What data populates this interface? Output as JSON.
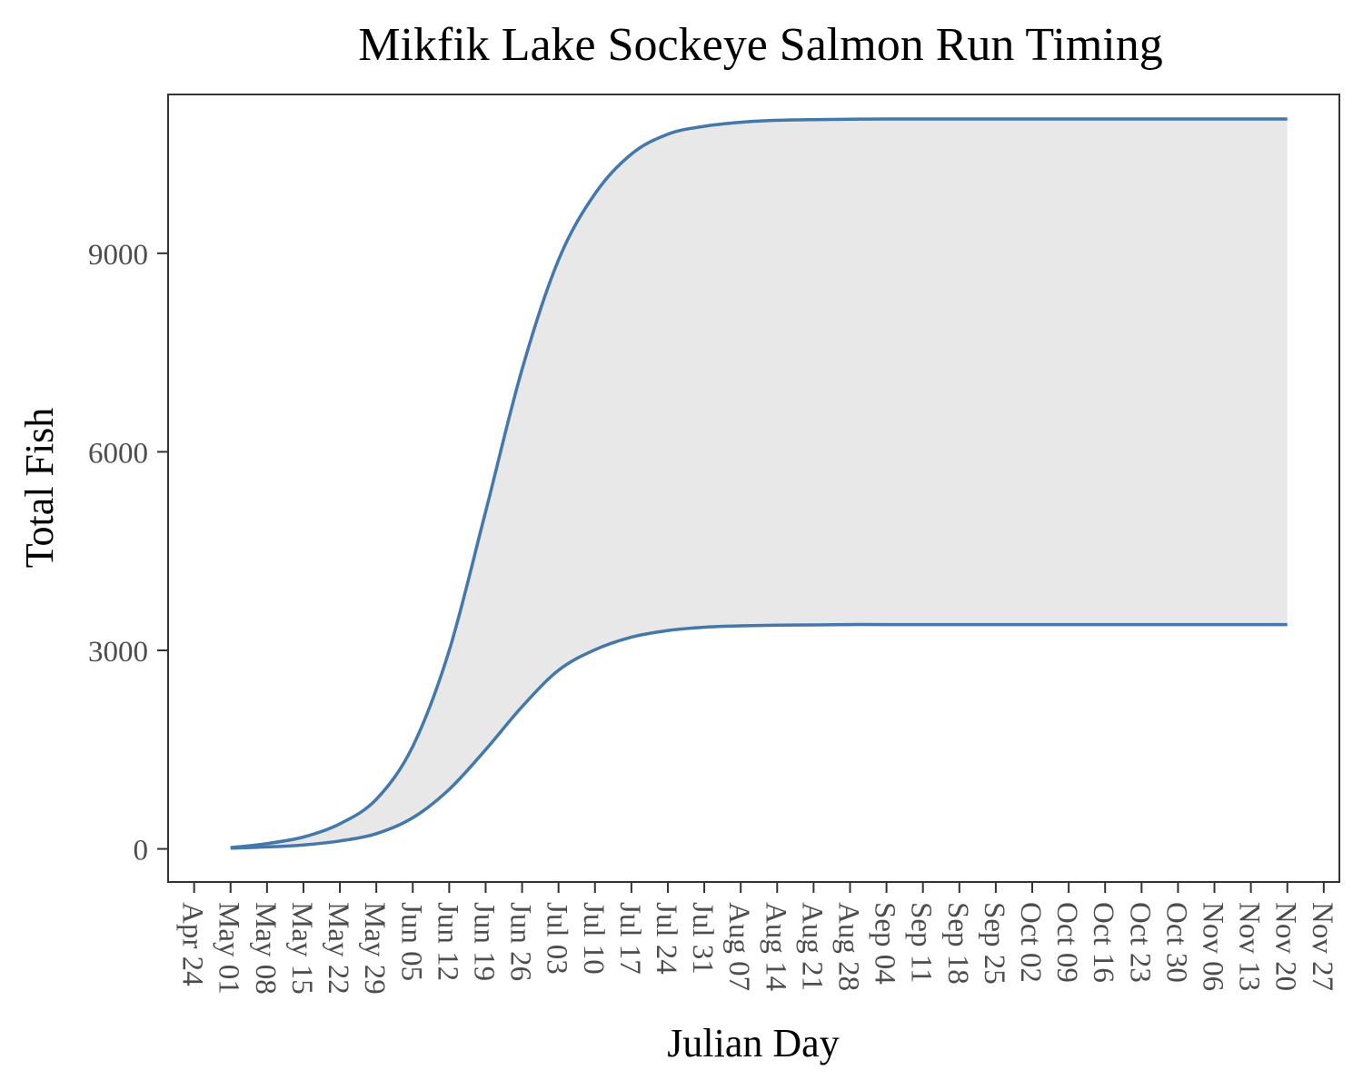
{
  "chart_data": {
    "type": "area",
    "title": "Mikfik Lake Sockeye Salmon Run Timing",
    "xlabel": "Julian Day",
    "ylabel": "Total Fish",
    "x_tick_labels": [
      "Apr 24",
      "May 01",
      "May 08",
      "May 15",
      "May 22",
      "May 29",
      "Jun 05",
      "Jun 12",
      "Jun 19",
      "Jun 26",
      "Jul 03",
      "Jul 10",
      "Jul 17",
      "Jul 24",
      "Jul 31",
      "Aug 07",
      "Aug 14",
      "Aug 21",
      "Aug 28",
      "Sep 04",
      "Sep 11",
      "Sep 18",
      "Sep 25",
      "Oct 02",
      "Oct 09",
      "Oct 16",
      "Oct 23",
      "Oct 30",
      "Nov 06",
      "Nov 13",
      "Nov 20",
      "Nov 27"
    ],
    "y_ticks": [
      0,
      3000,
      6000,
      9000
    ],
    "ylim": [
      -500,
      11400
    ],
    "x_range": [
      "Apr 19",
      "Nov 30"
    ],
    "grid": false,
    "colors": {
      "line": "#4477aa",
      "band": "#e8e8e8",
      "panel_border": "#333333"
    },
    "series": [
      {
        "role": "upper",
        "x": [
          "May 01",
          "May 08",
          "May 15",
          "May 22",
          "May 29",
          "Jun 05",
          "Jun 12",
          "Jun 19",
          "Jun 26",
          "Jul 03",
          "Jul 10",
          "Jul 17",
          "Jul 24",
          "Jul 31",
          "Aug 07",
          "Aug 14",
          "Aug 21",
          "Aug 28",
          "Sep 04",
          "Sep 25",
          "Oct 23",
          "Nov 20"
        ],
        "values": [
          20,
          80,
          180,
          380,
          750,
          1550,
          3000,
          5100,
          7250,
          8900,
          9900,
          10500,
          10800,
          10920,
          10980,
          11010,
          11020,
          11025,
          11030,
          11030,
          11030,
          11030
        ]
      },
      {
        "role": "lower",
        "x": [
          "May 01",
          "May 08",
          "May 15",
          "May 22",
          "May 29",
          "Jun 05",
          "Jun 12",
          "Jun 19",
          "Jun 26",
          "Jul 03",
          "Jul 10",
          "Jul 17",
          "Jul 24",
          "Jul 31",
          "Aug 07",
          "Aug 14",
          "Aug 21",
          "Aug 28",
          "Sep 04",
          "Sep 25",
          "Oct 23",
          "Nov 20"
        ],
        "values": [
          10,
          30,
          60,
          120,
          230,
          470,
          900,
          1500,
          2150,
          2700,
          3010,
          3200,
          3300,
          3350,
          3370,
          3380,
          3385,
          3390,
          3390,
          3390,
          3390,
          3390
        ]
      }
    ]
  }
}
